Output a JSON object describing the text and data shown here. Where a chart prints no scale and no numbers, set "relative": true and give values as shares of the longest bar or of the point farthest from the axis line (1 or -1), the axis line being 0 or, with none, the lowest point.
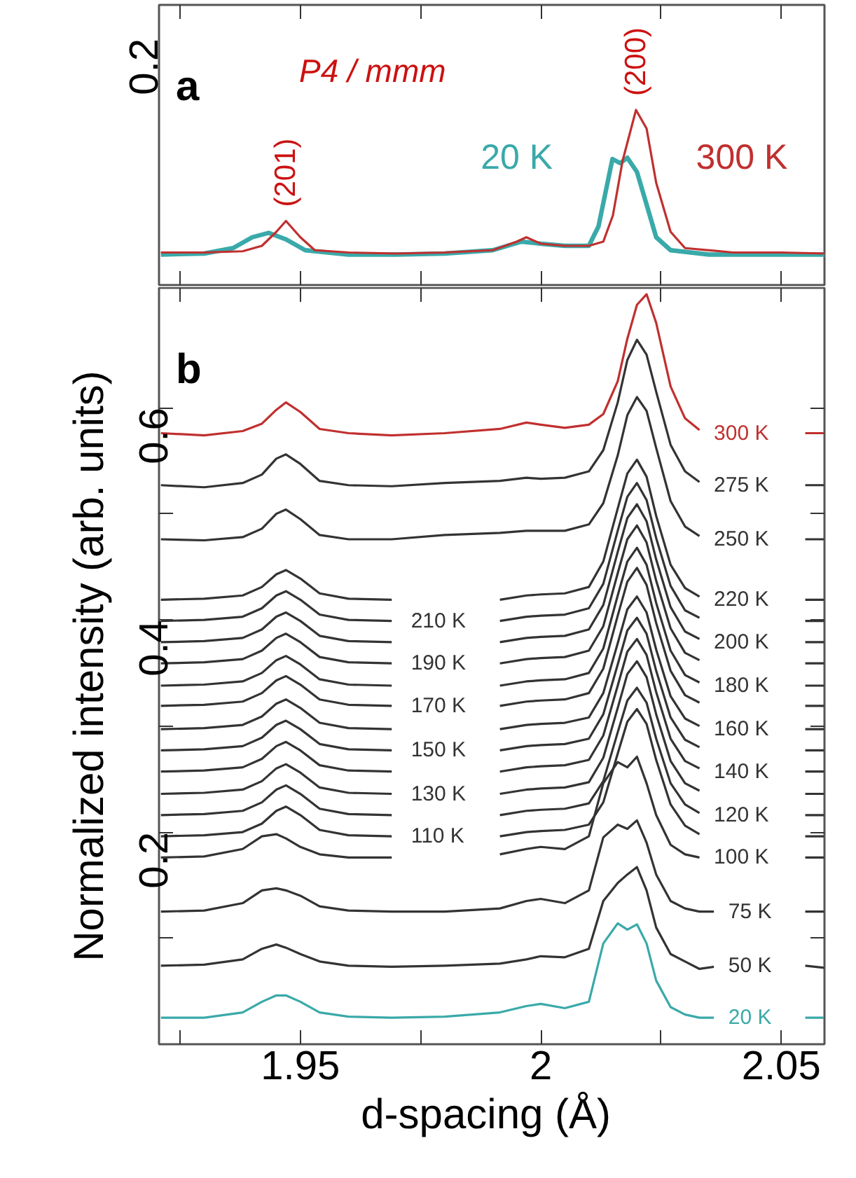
{
  "chart_data": [
    {
      "type": "line",
      "xlim": [
        1.9206,
        2.059
      ],
      "relative": true,
      "xticks": [
        {
          "value": 1.925,
          "label": null
        },
        1.95,
        {
          "value": 1.975,
          "label": null
        },
        2,
        {
          "value": 2.025,
          "label": null
        },
        2.05
      ],
      "tick_labels": false,
      "grid": false,
      "annotations": [
        "a",
        "P4 / mmm",
        "0.2",
        {
          "text": "(201)",
          "x": 1.947,
          "y": 0.366
        },
        {
          "text": "(200)",
          "x": 2.0198,
          "y": 1.0
        }
      ],
      "series": [
        {
          "name": "20 K",
          "color": "#3aa9a9",
          "x": [
            1.921,
            1.93,
            1.936,
            1.94,
            1.9434,
            1.947,
            1.951,
            1.96,
            1.97,
            1.98,
            1.99,
            1.996,
            2.0,
            2.005,
            2.01,
            2.012,
            2.0149,
            2.0165,
            2.018,
            2.02,
            2.022,
            2.024,
            2.027,
            2.035,
            2.05,
            2.059
          ],
          "values": [
            0.174,
            0.18,
            0.211,
            0.273,
            0.298,
            0.261,
            0.199,
            0.174,
            0.174,
            0.18,
            0.199,
            0.248,
            0.236,
            0.224,
            0.224,
            0.335,
            0.72,
            0.696,
            0.727,
            0.646,
            0.46,
            0.273,
            0.199,
            0.174,
            0.174,
            0.174
          ]
        },
        {
          "name": "300 K",
          "color": "#c0302f",
          "x": [
            1.921,
            1.93,
            1.938,
            1.942,
            1.945,
            1.947,
            1.95,
            1.953,
            1.96,
            1.97,
            1.98,
            1.99,
            1.995,
            1.997,
            2.0,
            2.005,
            2.01,
            2.013,
            2.015,
            2.017,
            2.0198,
            2.022,
            2.024,
            2.027,
            2.03,
            2.04,
            2.05,
            2.059
          ],
          "values": [
            0.186,
            0.186,
            0.193,
            0.224,
            0.304,
            0.366,
            0.273,
            0.199,
            0.186,
            0.18,
            0.186,
            0.199,
            0.248,
            0.273,
            0.236,
            0.224,
            0.224,
            0.248,
            0.398,
            0.708,
            1.0,
            0.894,
            0.584,
            0.304,
            0.211,
            0.186,
            0.186,
            0.18
          ]
        }
      ]
    },
    {
      "type": "line",
      "xlim": [
        1.9206,
        2.059
      ],
      "ylim": [
        0,
        0.713
      ],
      "xticks": [
        {
          "value": 1.925,
          "label": null
        },
        1.95,
        {
          "value": 1.975,
          "label": null
        },
        2,
        {
          "value": 2.025,
          "label": null
        },
        2.05
      ],
      "yticks": [
        {
          "value": 0.1,
          "label": null
        },
        0.2,
        {
          "value": 0.3,
          "label": null
        },
        0.4,
        {
          "value": 0.5,
          "label": null
        },
        0.6
      ],
      "xlabel": "d-spacing  (Å)",
      "ylabel": "Normalized intensity (arb. units)",
      "grid": false,
      "annotations": [
        "b"
      ],
      "x": [
        1.921,
        1.93,
        1.938,
        1.942,
        1.945,
        1.947,
        1.95,
        1.954,
        1.96,
        1.969,
        1.98,
        1.9915,
        1.997,
        2.0,
        2.005,
        2.01,
        2.013,
        2.016,
        2.018,
        2.02,
        2.022,
        2.024,
        2.027,
        2.03,
        2.033,
        2.036,
        2.045,
        2.055,
        2.059
      ],
      "series": [
        {
          "name": "300 K",
          "color": "#c0302f",
          "values": [
            0.576,
            0.574,
            0.578,
            0.585,
            0.598,
            0.605,
            0.596,
            0.58,
            0.576,
            0.574,
            0.576,
            0.58,
            0.586,
            0.584,
            0.581,
            0.584,
            0.594,
            0.625,
            0.665,
            0.697,
            0.707,
            0.68,
            0.62,
            0.59,
            0.579,
            null,
            null,
            0.576,
            0.576
          ]
        },
        {
          "name": "275 K",
          "color": "#333333",
          "values": [
            0.527,
            0.525,
            0.529,
            0.537,
            0.552,
            0.556,
            0.547,
            0.531,
            0.527,
            0.526,
            0.529,
            0.531,
            0.534,
            0.533,
            0.534,
            0.54,
            0.56,
            0.605,
            0.645,
            0.664,
            0.65,
            0.615,
            0.565,
            0.54,
            0.53,
            null,
            null,
            0.527,
            0.527
          ]
        },
        {
          "name": "250 K",
          "color": "#333333",
          "values": [
            0.476,
            0.475,
            0.478,
            0.486,
            0.5,
            0.504,
            0.495,
            0.48,
            0.476,
            0.476,
            0.48,
            0.482,
            0.484,
            0.484,
            0.484,
            0.49,
            0.51,
            0.555,
            0.593,
            0.61,
            0.597,
            0.562,
            0.512,
            0.488,
            0.479,
            null,
            null,
            0.476,
            0.476
          ]
        },
        {
          "name": "220 K",
          "color": "#333333",
          "values": [
            0.419,
            0.42,
            0.423,
            0.431,
            0.443,
            0.447,
            0.439,
            0.425,
            0.42,
            0.419,
            null,
            0.419,
            0.423,
            0.424,
            0.425,
            0.431,
            0.455,
            0.505,
            0.538,
            0.551,
            0.535,
            0.498,
            0.452,
            0.43,
            0.422,
            null,
            null,
            0.419,
            0.419
          ]
        },
        {
          "name": "210 K",
          "color": "#333333",
          "values": [
            0.399,
            0.4,
            0.403,
            0.411,
            0.423,
            0.427,
            0.419,
            0.405,
            0.4,
            0.399,
            null,
            0.399,
            0.403,
            0.404,
            0.405,
            0.411,
            0.434,
            0.484,
            0.516,
            0.529,
            0.513,
            0.477,
            0.432,
            0.409,
            0.402,
            null,
            null,
            0.399,
            0.399
          ]
        },
        {
          "name": "200 K",
          "color": "#333333",
          "values": [
            0.379,
            0.38,
            0.383,
            0.391,
            0.403,
            0.407,
            0.399,
            0.385,
            0.38,
            0.379,
            null,
            0.379,
            0.383,
            0.384,
            0.385,
            0.391,
            0.414,
            0.464,
            0.496,
            0.509,
            0.493,
            0.457,
            0.412,
            0.389,
            0.382,
            null,
            null,
            0.379,
            0.379
          ]
        },
        {
          "name": "190 K",
          "color": "#333333",
          "values": [
            0.359,
            0.36,
            0.363,
            0.371,
            0.383,
            0.387,
            0.379,
            0.365,
            0.36,
            0.359,
            null,
            0.359,
            0.363,
            0.364,
            0.365,
            0.371,
            0.394,
            0.444,
            0.476,
            0.489,
            0.473,
            0.437,
            0.392,
            0.369,
            0.362,
            null,
            null,
            0.359,
            0.359
          ]
        },
        {
          "name": "180 K",
          "color": "#333333",
          "values": [
            0.338,
            0.339,
            0.342,
            0.35,
            0.362,
            0.366,
            0.358,
            0.344,
            0.339,
            0.338,
            null,
            0.338,
            0.342,
            0.343,
            0.344,
            0.35,
            0.373,
            0.423,
            0.455,
            0.468,
            0.452,
            0.416,
            0.371,
            0.348,
            0.341,
            null,
            null,
            0.338,
            0.338
          ]
        },
        {
          "name": "170 K",
          "color": "#333333",
          "values": [
            0.319,
            0.32,
            0.323,
            0.331,
            0.343,
            0.347,
            0.339,
            0.325,
            0.32,
            0.319,
            null,
            0.319,
            0.323,
            0.324,
            0.325,
            0.331,
            0.354,
            0.404,
            0.436,
            0.449,
            0.433,
            0.397,
            0.352,
            0.329,
            0.322,
            null,
            null,
            0.319,
            0.319
          ]
        },
        {
          "name": "160 K",
          "color": "#333333",
          "values": [
            0.297,
            0.298,
            0.301,
            0.309,
            0.321,
            0.325,
            0.317,
            0.303,
            0.298,
            0.297,
            null,
            0.297,
            0.301,
            0.302,
            0.303,
            0.308,
            0.331,
            0.378,
            0.41,
            0.422,
            0.407,
            0.372,
            0.328,
            0.307,
            0.3,
            null,
            null,
            0.297,
            0.297
          ]
        },
        {
          "name": "150 K",
          "color": "#333333",
          "values": [
            0.277,
            0.278,
            0.281,
            0.289,
            0.301,
            0.305,
            0.297,
            0.283,
            0.278,
            0.277,
            null,
            0.277,
            0.281,
            0.282,
            0.283,
            0.288,
            0.311,
            0.358,
            0.39,
            0.402,
            0.387,
            0.352,
            0.308,
            0.287,
            0.28,
            null,
            null,
            0.277,
            0.277
          ]
        },
        {
          "name": "140 K",
          "color": "#333333",
          "values": [
            0.257,
            0.258,
            0.261,
            0.269,
            0.281,
            0.285,
            0.277,
            0.263,
            0.258,
            0.257,
            null,
            0.257,
            0.261,
            0.262,
            0.263,
            0.268,
            0.291,
            0.338,
            0.37,
            0.382,
            0.367,
            0.332,
            0.288,
            0.267,
            0.26,
            null,
            null,
            0.257,
            0.257
          ]
        },
        {
          "name": "130 K",
          "color": "#333333",
          "values": [
            0.236,
            0.237,
            0.24,
            0.248,
            0.26,
            0.264,
            0.256,
            0.242,
            0.237,
            0.236,
            null,
            0.236,
            0.24,
            0.241,
            0.242,
            0.247,
            0.27,
            0.317,
            0.349,
            0.361,
            0.346,
            0.311,
            0.267,
            0.246,
            0.239,
            null,
            null,
            0.236,
            0.236
          ]
        },
        {
          "name": "120 K",
          "color": "#333333",
          "values": [
            0.216,
            0.217,
            0.22,
            0.228,
            0.24,
            0.244,
            0.236,
            0.222,
            0.217,
            0.216,
            null,
            0.216,
            0.22,
            0.221,
            0.222,
            0.227,
            0.248,
            0.294,
            0.324,
            0.336,
            0.322,
            0.288,
            0.246,
            0.226,
            0.218,
            null,
            null,
            0.216,
            0.216
          ]
        },
        {
          "name": "110 K",
          "color": "#333333",
          "values": [
            0.196,
            0.197,
            0.2,
            0.208,
            0.22,
            0.224,
            0.216,
            0.202,
            0.197,
            0.196,
            null,
            0.196,
            0.2,
            0.201,
            0.202,
            0.207,
            0.228,
            0.274,
            0.304,
            0.316,
            0.302,
            0.268,
            0.226,
            0.206,
            0.198,
            null,
            null,
            0.196,
            0.196
          ]
        },
        {
          "name": "100 K",
          "color": "#333333",
          "values": [
            0.176,
            0.177,
            0.184,
            0.196,
            0.198,
            0.194,
            0.186,
            0.179,
            0.176,
            0.176,
            null,
            0.179,
            0.184,
            0.186,
            0.184,
            0.196,
            0.246,
            0.266,
            0.261,
            0.271,
            0.246,
            0.216,
            0.188,
            0.179,
            0.176,
            null,
            null,
            0.176,
            0.176
          ]
        },
        {
          "name": "75 K",
          "color": "#333333",
          "values": [
            0.125,
            0.126,
            0.133,
            0.145,
            0.147,
            0.145,
            0.14,
            0.13,
            0.126,
            0.125,
            0.125,
            0.128,
            0.135,
            0.137,
            0.133,
            0.145,
            0.195,
            0.207,
            0.203,
            0.211,
            0.19,
            0.16,
            0.135,
            0.128,
            0.125,
            0.125,
            null,
            0.125,
            0.125
          ]
        },
        {
          "name": "50 K",
          "color": "#333333",
          "values": [
            0.074,
            0.075,
            0.08,
            0.09,
            0.094,
            0.091,
            0.085,
            0.078,
            0.074,
            0.073,
            0.074,
            0.076,
            0.08,
            0.083,
            0.082,
            0.09,
            0.135,
            0.152,
            0.16,
            0.167,
            0.145,
            0.11,
            0.085,
            0.078,
            0.071,
            0.073,
            null,
            0.074,
            0.072
          ]
        },
        {
          "name": "20 K",
          "color": "#3aa9a9",
          "values": [
            0.025,
            0.025,
            0.03,
            0.04,
            0.046,
            0.046,
            0.04,
            0.03,
            0.026,
            0.025,
            0.026,
            0.03,
            0.036,
            0.038,
            0.034,
            0.04,
            0.095,
            0.114,
            0.108,
            0.113,
            0.095,
            0.06,
            0.035,
            0.028,
            0.025,
            0.025,
            null,
            0.025,
            0.025
          ]
        }
      ]
    }
  ]
}
